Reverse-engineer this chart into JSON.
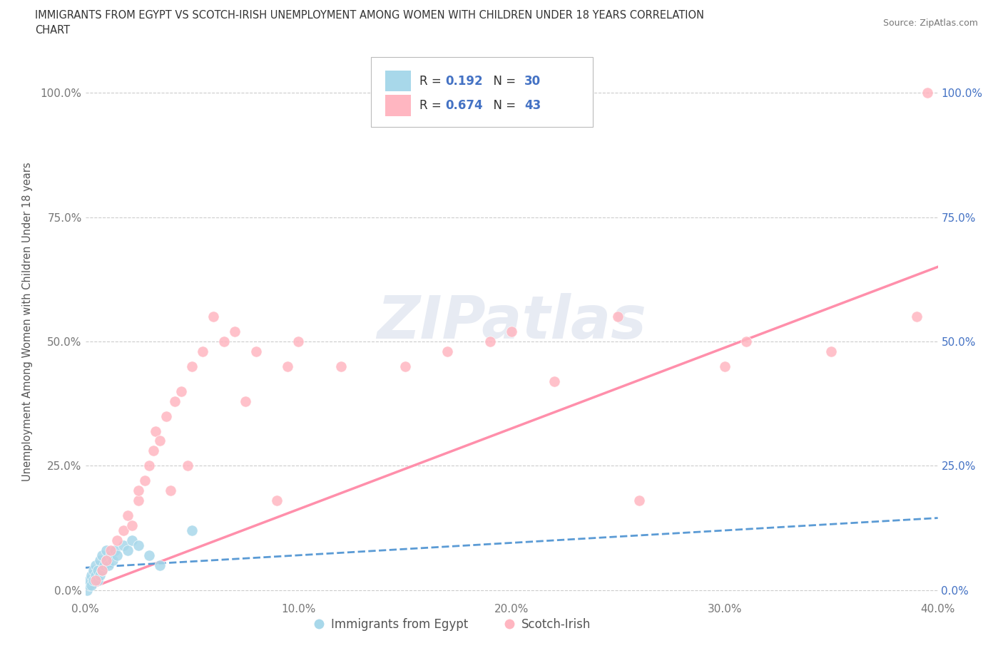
{
  "title_line1": "IMMIGRANTS FROM EGYPT VS SCOTCH-IRISH UNEMPLOYMENT AMONG WOMEN WITH CHILDREN UNDER 18 YEARS CORRELATION",
  "title_line2": "CHART",
  "source": "Source: ZipAtlas.com",
  "ylabel": "Unemployment Among Women with Children Under 18 years",
  "watermark": "ZIPatlas",
  "xlim": [
    0.0,
    0.4
  ],
  "ylim": [
    -0.02,
    1.1
  ],
  "yticks": [
    0.0,
    0.25,
    0.5,
    0.75,
    1.0
  ],
  "ytick_labels": [
    "0.0%",
    "25.0%",
    "50.0%",
    "75.0%",
    "100.0%"
  ],
  "xticks": [
    0.0,
    0.1,
    0.2,
    0.3,
    0.4
  ],
  "xtick_labels": [
    "0.0%",
    "10.0%",
    "20.0%",
    "30.0%",
    "40.0%"
  ],
  "blue_dot_color": "#A8D8EA",
  "pink_dot_color": "#FFB6C1",
  "blue_line_color": "#5B9BD5",
  "pink_line_color": "#FF8FAB",
  "blue_R": 0.192,
  "blue_N": 30,
  "pink_R": 0.674,
  "pink_N": 43,
  "legend_label_blue": "Immigrants from Egypt",
  "legend_label_pink": "Scotch-Irish",
  "egypt_x": [
    0.001,
    0.002,
    0.002,
    0.003,
    0.003,
    0.004,
    0.004,
    0.005,
    0.005,
    0.006,
    0.006,
    0.007,
    0.007,
    0.008,
    0.008,
    0.009,
    0.01,
    0.01,
    0.011,
    0.012,
    0.013,
    0.014,
    0.015,
    0.018,
    0.02,
    0.022,
    0.025,
    0.03,
    0.035,
    0.05
  ],
  "egypt_y": [
    0.0,
    0.01,
    0.02,
    0.01,
    0.03,
    0.02,
    0.04,
    0.03,
    0.05,
    0.02,
    0.04,
    0.03,
    0.06,
    0.04,
    0.07,
    0.05,
    0.06,
    0.08,
    0.05,
    0.07,
    0.06,
    0.08,
    0.07,
    0.09,
    0.08,
    0.1,
    0.09,
    0.07,
    0.05,
    0.12
  ],
  "scotch_x": [
    0.005,
    0.008,
    0.01,
    0.012,
    0.015,
    0.018,
    0.02,
    0.022,
    0.025,
    0.025,
    0.028,
    0.03,
    0.032,
    0.033,
    0.035,
    0.038,
    0.04,
    0.042,
    0.045,
    0.048,
    0.05,
    0.055,
    0.06,
    0.065,
    0.07,
    0.075,
    0.08,
    0.09,
    0.095,
    0.1,
    0.12,
    0.15,
    0.17,
    0.19,
    0.2,
    0.22,
    0.25,
    0.26,
    0.3,
    0.31,
    0.35,
    0.39,
    0.395
  ],
  "scotch_y": [
    0.02,
    0.04,
    0.06,
    0.08,
    0.1,
    0.12,
    0.15,
    0.13,
    0.18,
    0.2,
    0.22,
    0.25,
    0.28,
    0.32,
    0.3,
    0.35,
    0.2,
    0.38,
    0.4,
    0.25,
    0.45,
    0.48,
    0.55,
    0.5,
    0.52,
    0.38,
    0.48,
    0.18,
    0.45,
    0.5,
    0.45,
    0.45,
    0.48,
    0.5,
    0.52,
    0.42,
    0.55,
    0.18,
    0.45,
    0.5,
    0.48,
    0.55,
    1.0
  ],
  "pink_line_x0": 0.0,
  "pink_line_y0": 0.0,
  "pink_line_x1": 0.4,
  "pink_line_y1": 0.65,
  "blue_line_x0": 0.0,
  "blue_line_y0": 0.045,
  "blue_line_x1": 0.4,
  "blue_line_y1": 0.145
}
